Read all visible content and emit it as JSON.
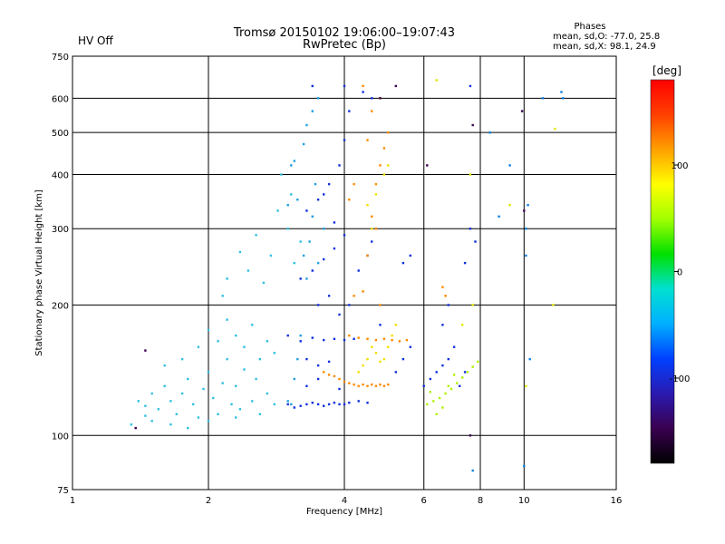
{
  "header": {
    "title_line1": "Tromsø 20150102 19:06:00–19:07:43",
    "title_line2": "RwPretec (Bp)",
    "status": "HV Off",
    "status_color": "#cc0000"
  },
  "stats": {
    "heading": "Phases",
    "line_o": "mean, sd,O: -77.0, 25.8",
    "line_x": "mean, sd,X:  98.1, 24.9"
  },
  "chart_data": {
    "type": "scatter",
    "xlabel": "Frequency [MHz]",
    "ylabel": "Stationary phase Virtual Height [km]",
    "xscale": "log",
    "yscale": "log",
    "xlim": [
      1,
      16
    ],
    "ylim": [
      75,
      750
    ],
    "xticks": [
      1,
      2,
      4,
      6,
      8,
      10,
      16
    ],
    "yticks": [
      75,
      100,
      200,
      300,
      400,
      500,
      600,
      750
    ],
    "x_gridlines": [
      2,
      4,
      6,
      8,
      10
    ],
    "y_gridlines": [
      100,
      200,
      300,
      400,
      500,
      600
    ],
    "grid": true,
    "colorbar": {
      "label": "[deg]",
      "ticks": [
        100,
        0,
        -100
      ],
      "range": [
        -180,
        180
      ],
      "colors": [
        "#000000",
        "#3a0050",
        "#2b1ab0",
        "#0040ff",
        "#00b0ff",
        "#00e0d0",
        "#00e000",
        "#a0ff00",
        "#ffff00",
        "#ffa000",
        "#ff4000",
        "#ff0000"
      ]
    },
    "series": [
      {
        "color": "#30c0e0",
        "points": [
          [
            1.4,
            120
          ],
          [
            1.45,
            117
          ],
          [
            1.5,
            125
          ],
          [
            1.55,
            115
          ],
          [
            1.6,
            130
          ],
          [
            1.65,
            120
          ],
          [
            1.7,
            112
          ],
          [
            1.75,
            125
          ],
          [
            1.8,
            135
          ],
          [
            1.85,
            118
          ],
          [
            1.9,
            110
          ],
          [
            1.95,
            128
          ],
          [
            2.0,
            140
          ],
          [
            2.05,
            122
          ],
          [
            2.1,
            112
          ],
          [
            2.15,
            132
          ],
          [
            2.2,
            150
          ],
          [
            2.25,
            118
          ],
          [
            2.3,
            130
          ],
          [
            2.35,
            115
          ],
          [
            2.4,
            142
          ],
          [
            2.5,
            120
          ],
          [
            2.55,
            135
          ],
          [
            2.6,
            112
          ],
          [
            2.7,
            125
          ],
          [
            2.8,
            118
          ],
          [
            1.6,
            145
          ],
          [
            1.75,
            150
          ],
          [
            1.9,
            160
          ],
          [
            2.0,
            175
          ],
          [
            2.1,
            165
          ],
          [
            2.2,
            185
          ],
          [
            2.3,
            170
          ],
          [
            2.4,
            160
          ],
          [
            2.5,
            180
          ],
          [
            2.6,
            150
          ],
          [
            2.7,
            165
          ],
          [
            2.8,
            155
          ],
          [
            1.5,
            108
          ],
          [
            1.65,
            106
          ],
          [
            1.8,
            104
          ],
          [
            2.0,
            108
          ],
          [
            2.3,
            110
          ],
          [
            1.35,
            106
          ],
          [
            1.45,
            111
          ],
          [
            2.15,
            210
          ],
          [
            2.35,
            265
          ],
          [
            2.45,
            240
          ],
          [
            2.55,
            290
          ],
          [
            2.65,
            225
          ],
          [
            2.75,
            260
          ],
          [
            2.85,
            330
          ],
          [
            2.9,
            400
          ],
          [
            3.0,
            300
          ],
          [
            3.05,
            360
          ],
          [
            3.1,
            250
          ],
          [
            3.2,
            280
          ],
          [
            2.2,
            230
          ]
        ]
      },
      {
        "color": "#1fa0e0",
        "points": [
          [
            3.0,
            120
          ],
          [
            3.05,
            118
          ],
          [
            3.1,
            135
          ],
          [
            3.15,
            150
          ],
          [
            3.2,
            170
          ],
          [
            3.25,
            260
          ],
          [
            3.3,
            230
          ],
          [
            3.35,
            280
          ],
          [
            3.4,
            320
          ],
          [
            3.45,
            380
          ],
          [
            3.5,
            250
          ],
          [
            3.1,
            430
          ],
          [
            3.25,
            470
          ],
          [
            3.3,
            520
          ],
          [
            3.4,
            560
          ],
          [
            3.5,
            600
          ],
          [
            3.05,
            420
          ],
          [
            3.15,
            350
          ],
          [
            3.6,
            300
          ],
          [
            3.0,
            340
          ]
        ]
      },
      {
        "color": "#1030e0",
        "points": [
          [
            3.0,
            118
          ],
          [
            3.1,
            116
          ],
          [
            3.2,
            117
          ],
          [
            3.3,
            118
          ],
          [
            3.4,
            119
          ],
          [
            3.5,
            118
          ],
          [
            3.6,
            117
          ],
          [
            3.7,
            118
          ],
          [
            3.8,
            119
          ],
          [
            3.9,
            118
          ],
          [
            4.0,
            118
          ],
          [
            4.1,
            119
          ],
          [
            4.3,
            120
          ],
          [
            4.5,
            119
          ],
          [
            3.0,
            170
          ],
          [
            3.2,
            165
          ],
          [
            3.4,
            168
          ],
          [
            3.6,
            166
          ],
          [
            3.8,
            167
          ],
          [
            4.0,
            166
          ],
          [
            4.2,
            167
          ],
          [
            3.3,
            150
          ],
          [
            3.5,
            145
          ],
          [
            3.7,
            148
          ],
          [
            3.2,
            230
          ],
          [
            3.4,
            240
          ],
          [
            3.6,
            255
          ],
          [
            3.8,
            270
          ],
          [
            4.0,
            290
          ],
          [
            3.3,
            330
          ],
          [
            3.5,
            350
          ],
          [
            3.7,
            380
          ],
          [
            3.9,
            420
          ],
          [
            4.0,
            480
          ],
          [
            4.1,
            560
          ],
          [
            4.0,
            640
          ],
          [
            3.6,
            360
          ],
          [
            3.8,
            310
          ],
          [
            3.5,
            200
          ],
          [
            3.7,
            210
          ],
          [
            3.9,
            190
          ],
          [
            4.1,
            200
          ],
          [
            4.3,
            240
          ],
          [
            4.5,
            260
          ],
          [
            4.6,
            280
          ],
          [
            4.8,
            180
          ],
          [
            5.2,
            140
          ],
          [
            5.4,
            150
          ],
          [
            5.6,
            160
          ],
          [
            6.0,
            130
          ],
          [
            6.2,
            135
          ],
          [
            6.4,
            140
          ],
          [
            6.6,
            145
          ],
          [
            6.8,
            150
          ],
          [
            7.0,
            160
          ],
          [
            7.2,
            130
          ],
          [
            7.4,
            140
          ],
          [
            6.6,
            180
          ],
          [
            6.8,
            200
          ],
          [
            7.4,
            250
          ],
          [
            7.6,
            300
          ],
          [
            7.8,
            280
          ],
          [
            7.6,
            640
          ],
          [
            5.4,
            250
          ],
          [
            5.6,
            260
          ],
          [
            4.6,
            600
          ],
          [
            4.4,
            620
          ],
          [
            3.4,
            640
          ],
          [
            3.3,
            130
          ],
          [
            3.5,
            135
          ],
          [
            3.9,
            128
          ]
        ]
      },
      {
        "color": "#ff8a00",
        "points": [
          [
            3.9,
            135
          ],
          [
            4.0,
            133
          ],
          [
            4.1,
            132
          ],
          [
            4.2,
            131
          ],
          [
            4.3,
            130
          ],
          [
            4.4,
            131
          ],
          [
            4.5,
            130
          ],
          [
            4.6,
            131
          ],
          [
            4.7,
            130
          ],
          [
            4.8,
            131
          ],
          [
            4.9,
            130
          ],
          [
            5.0,
            131
          ],
          [
            3.6,
            140
          ],
          [
            3.7,
            138
          ],
          [
            3.8,
            137
          ],
          [
            4.1,
            170
          ],
          [
            4.3,
            168
          ],
          [
            4.5,
            167
          ],
          [
            4.7,
            166
          ],
          [
            4.9,
            167
          ],
          [
            5.1,
            166
          ],
          [
            5.3,
            165
          ],
          [
            5.5,
            166
          ],
          [
            4.2,
            210
          ],
          [
            4.4,
            215
          ],
          [
            4.5,
            260
          ],
          [
            4.6,
            320
          ],
          [
            4.7,
            380
          ],
          [
            4.8,
            420
          ],
          [
            4.9,
            460
          ],
          [
            5.0,
            500
          ],
          [
            4.6,
            560
          ],
          [
            4.8,
            600
          ],
          [
            4.4,
            640
          ],
          [
            4.5,
            480
          ],
          [
            4.7,
            300
          ],
          [
            4.8,
            200
          ],
          [
            6.6,
            220
          ],
          [
            6.7,
            210
          ],
          [
            4.2,
            380
          ],
          [
            4.1,
            350
          ]
        ]
      },
      {
        "color": "#f0e000",
        "points": [
          [
            4.3,
            140
          ],
          [
            4.4,
            145
          ],
          [
            4.5,
            150
          ],
          [
            4.6,
            160
          ],
          [
            4.7,
            155
          ],
          [
            4.8,
            148
          ],
          [
            4.9,
            150
          ],
          [
            5.0,
            160
          ],
          [
            5.1,
            170
          ],
          [
            5.2,
            180
          ],
          [
            4.5,
            340
          ],
          [
            4.7,
            360
          ],
          [
            4.9,
            400
          ],
          [
            5.0,
            420
          ],
          [
            4.6,
            300
          ]
        ]
      },
      {
        "color": "#b0f000",
        "points": [
          [
            6.1,
            118
          ],
          [
            6.3,
            120
          ],
          [
            6.5,
            122
          ],
          [
            6.7,
            125
          ],
          [
            6.9,
            128
          ],
          [
            7.1,
            132
          ],
          [
            7.3,
            136
          ],
          [
            7.5,
            140
          ],
          [
            7.7,
            144
          ],
          [
            7.9,
            148
          ],
          [
            6.4,
            112
          ],
          [
            6.6,
            116
          ],
          [
            6.8,
            130
          ],
          [
            7.0,
            138
          ],
          [
            6.2,
            126
          ]
        ]
      },
      {
        "color": "#e0e800",
        "points": [
          [
            6.4,
            660
          ],
          [
            7.3,
            180
          ],
          [
            7.7,
            200
          ],
          [
            9.3,
            340
          ],
          [
            11.7,
            510
          ],
          [
            11.6,
            200
          ],
          [
            10.1,
            130
          ],
          [
            7.6,
            400
          ]
        ]
      },
      {
        "color": "#1080e0",
        "points": [
          [
            10.0,
            85
          ],
          [
            7.7,
            83
          ],
          [
            10.1,
            260
          ],
          [
            12.2,
            600
          ],
          [
            9.3,
            420
          ],
          [
            10.1,
            300
          ],
          [
            10.2,
            340
          ],
          [
            8.4,
            500
          ],
          [
            11.0,
            600
          ],
          [
            12.1,
            620
          ],
          [
            10.3,
            150
          ],
          [
            8.8,
            320
          ]
        ]
      },
      {
        "color": "#3a0050",
        "points": [
          [
            1.38,
            104
          ],
          [
            1.45,
            157
          ],
          [
            4.8,
            600
          ],
          [
            5.2,
            640
          ],
          [
            6.1,
            420
          ],
          [
            7.6,
            100
          ],
          [
            7.7,
            520
          ],
          [
            9.9,
            560
          ],
          [
            10.0,
            330
          ]
        ]
      }
    ]
  }
}
